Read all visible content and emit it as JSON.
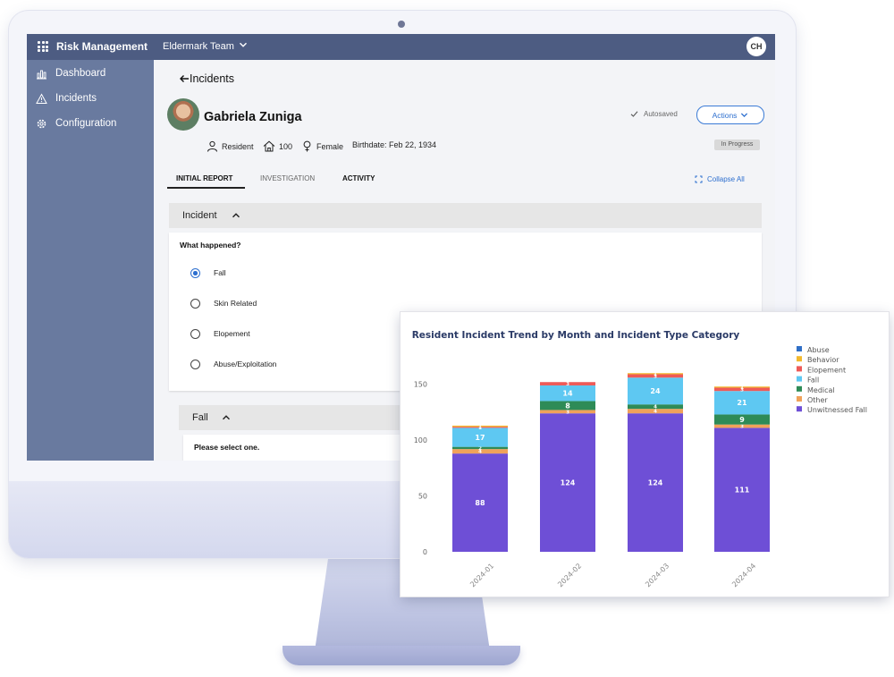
{
  "app": {
    "title": "Risk Management",
    "team": "Eldermark Team",
    "user_initials": "CH"
  },
  "sidebar": {
    "items": [
      {
        "label": "Dashboard",
        "icon": "bar-chart-icon"
      },
      {
        "label": "Incidents",
        "icon": "warning-icon"
      },
      {
        "label": "Configuration",
        "icon": "gear-icon"
      }
    ]
  },
  "page": {
    "back_title": "Incidents",
    "resident": {
      "name": "Gabriela Zuniga",
      "role": "Resident",
      "room": "100",
      "gender": "Female",
      "birthdate": "Birthdate: Feb 22, 1934"
    },
    "autosaved": "Autosaved",
    "actions_label": "Actions",
    "status": "In Progress",
    "tabs": [
      "INITIAL REPORT",
      "INVESTIGATION",
      "ACTIVITY"
    ],
    "collapse_all": "Collapse All",
    "incident_section": {
      "title": "Incident",
      "question": "What happened?",
      "options": [
        "Fall",
        "Skin Related",
        "Elopement",
        "Abuse/Exploitation"
      ],
      "selected": "Fall"
    },
    "fall_section": {
      "title": "Fall",
      "prompt": "Please select one."
    }
  },
  "chart_data": {
    "type": "bar",
    "stacked": true,
    "title": "Resident Incident Trend by Month and Incident Type Category",
    "categories": [
      "2024-01",
      "2024-02",
      "2024-03",
      "2024-04"
    ],
    "ylim": [
      0,
      165
    ],
    "yticks": [
      0,
      50,
      100,
      150
    ],
    "legend_position": "right",
    "series": [
      {
        "name": "Unwitnessed Fall",
        "color": "#6e4fd6",
        "values": [
          88,
          124,
          124,
          111
        ]
      },
      {
        "name": "Other",
        "color": "#f0a25a",
        "values": [
          4,
          3,
          4,
          3
        ]
      },
      {
        "name": "Medical",
        "color": "#2e8b57",
        "values": [
          2,
          8,
          4,
          9
        ]
      },
      {
        "name": "Fall",
        "color": "#5ec8f2",
        "values": [
          17,
          14,
          24,
          21
        ]
      },
      {
        "name": "Elopement",
        "color": "#ee5a57",
        "values": [
          1,
          3,
          3,
          3
        ]
      },
      {
        "name": "Behavior",
        "color": "#f2b92e",
        "values": [
          1,
          0,
          1,
          1
        ]
      },
      {
        "name": "Abuse",
        "color": "#2f6fc7",
        "values": [
          0,
          0,
          0,
          0
        ]
      }
    ],
    "legend_order": [
      "Abuse",
      "Behavior",
      "Elopement",
      "Fall",
      "Medical",
      "Other",
      "Unwitnessed Fall"
    ],
    "grid": false
  }
}
